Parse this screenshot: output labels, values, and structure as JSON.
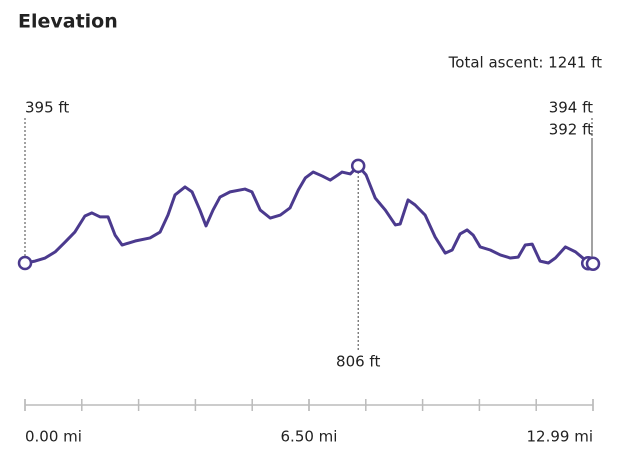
{
  "chart_data": {
    "type": "line",
    "title": "Elevation",
    "subtitle": "Total ascent: 1241 ft",
    "x": [
      0,
      0.23,
      0.46,
      0.69,
      0.92,
      1.14,
      1.37,
      1.53,
      1.72,
      1.9,
      2.06,
      2.22,
      2.52,
      2.86,
      3.09,
      3.27,
      3.43,
      3.66,
      3.82,
      4.0,
      4.14,
      4.3,
      4.46,
      4.69,
      5.03,
      5.19,
      5.38,
      5.61,
      5.84,
      6.06,
      6.25,
      6.41,
      6.59,
      6.8,
      6.98,
      7.16,
      7.25,
      7.44,
      7.62,
      7.8,
      8.01,
      8.24,
      8.47,
      8.58,
      8.76,
      8.92,
      9.15,
      9.38,
      9.61,
      9.77,
      9.95,
      10.11,
      10.25,
      10.41,
      10.64,
      10.87,
      11.1,
      11.28,
      11.44,
      11.6,
      11.78,
      11.97,
      12.13,
      12.36,
      12.59,
      12.81,
      12.88,
      12.99
    ],
    "series": [
      {
        "color": "#4b3a8e",
        "values": [
          395,
          403,
          416,
          442,
          484,
          526,
          594,
          607,
          590,
          590,
          513,
          471,
          488,
          501,
          526,
          598,
          683,
          717,
          696,
          619,
          552,
          619,
          674,
          696,
          708,
          696,
          619,
          585,
          598,
          628,
          704,
          755,
          780,
          763,
          746,
          768,
          780,
          772,
          806,
          768,
          670,
          619,
          556,
          560,
          662,
          641,
          598,
          505,
          437,
          450,
          518,
          535,
          513,
          463,
          450,
          429,
          416,
          420,
          471,
          475,
          403,
          395,
          416,
          463,
          442,
          408,
          394,
          392
        ],
        "value_labels": [
          "395 ft",
          null,
          null,
          null,
          null,
          null,
          null,
          null,
          null,
          null,
          null,
          null,
          null,
          null,
          null,
          null,
          null,
          null,
          null,
          null,
          null,
          null,
          null,
          null,
          null,
          null,
          null,
          null,
          null,
          null,
          null,
          null,
          null,
          null,
          null,
          null,
          null,
          null,
          "806 ft",
          null,
          null,
          null,
          null,
          null,
          null,
          null,
          null,
          null,
          null,
          null,
          null,
          null,
          null,
          null,
          null,
          null,
          null,
          null,
          null,
          null,
          null,
          null,
          null,
          null,
          null,
          null,
          "394 ft",
          "392 ft"
        ]
      }
    ],
    "xlim": [
      0,
      12.99
    ],
    "xticks": [
      {
        "value": 0,
        "label": "0.00 mi"
      },
      {
        "value": 6.495,
        "label": "6.50 mi"
      },
      {
        "value": 12.99,
        "label": "12.99 mi"
      }
    ],
    "minor_xticks": [
      0,
      1.299,
      2.598,
      3.897,
      5.196,
      6.495,
      7.794,
      9.093,
      10.392,
      11.691,
      12.99
    ],
    "ylim": [
      -185,
      1085
    ]
  }
}
